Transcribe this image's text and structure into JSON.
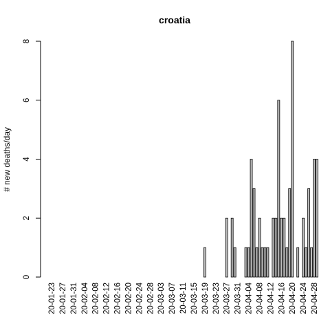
{
  "chart_data": {
    "type": "bar",
    "title": "croatia",
    "xlabel": "",
    "ylabel": "# new deaths/day",
    "ylim": [
      0,
      8
    ],
    "yticks": [
      0,
      2,
      4,
      6,
      8
    ],
    "x_tick_labels": [
      "20-01-23",
      "20-01-27",
      "20-01-31",
      "20-02-04",
      "20-02-08",
      "20-02-12",
      "20-02-16",
      "20-02-20",
      "20-02-24",
      "20-02-28",
      "20-03-03",
      "20-03-07",
      "20-03-11",
      "20-03-15",
      "20-03-19",
      "20-03-23",
      "20-03-27",
      "20-03-31",
      "20-04-04",
      "20-04-08",
      "20-04-12",
      "20-04-16",
      "20-04-20",
      "20-04-24",
      "20-04-28"
    ],
    "tick_every": 4,
    "bar_color": "#bebebe",
    "categories": [
      "20-01-23",
      "20-01-24",
      "20-01-25",
      "20-01-26",
      "20-01-27",
      "20-01-28",
      "20-01-29",
      "20-01-30",
      "20-01-31",
      "20-02-01",
      "20-02-02",
      "20-02-03",
      "20-02-04",
      "20-02-05",
      "20-02-06",
      "20-02-07",
      "20-02-08",
      "20-02-09",
      "20-02-10",
      "20-02-11",
      "20-02-12",
      "20-02-13",
      "20-02-14",
      "20-02-15",
      "20-02-16",
      "20-02-17",
      "20-02-18",
      "20-02-19",
      "20-02-20",
      "20-02-21",
      "20-02-22",
      "20-02-23",
      "20-02-24",
      "20-02-25",
      "20-02-26",
      "20-02-27",
      "20-02-28",
      "20-02-29",
      "20-03-01",
      "20-03-02",
      "20-03-03",
      "20-03-04",
      "20-03-05",
      "20-03-06",
      "20-03-07",
      "20-03-08",
      "20-03-09",
      "20-03-10",
      "20-03-11",
      "20-03-12",
      "20-03-13",
      "20-03-14",
      "20-03-15",
      "20-03-16",
      "20-03-17",
      "20-03-18",
      "20-03-19",
      "20-03-20",
      "20-03-21",
      "20-03-22",
      "20-03-23",
      "20-03-24",
      "20-03-25",
      "20-03-26",
      "20-03-27",
      "20-03-28",
      "20-03-29",
      "20-03-30",
      "20-03-31",
      "20-04-01",
      "20-04-02",
      "20-04-03",
      "20-04-04",
      "20-04-05",
      "20-04-06",
      "20-04-07",
      "20-04-08",
      "20-04-09",
      "20-04-10",
      "20-04-11",
      "20-04-12",
      "20-04-13",
      "20-04-14",
      "20-04-15",
      "20-04-16",
      "20-04-17",
      "20-04-18",
      "20-04-19",
      "20-04-20",
      "20-04-21",
      "20-04-22",
      "20-04-23",
      "20-04-24",
      "20-04-25",
      "20-04-26",
      "20-04-27",
      "20-04-28",
      "20-04-29"
    ],
    "values": [
      0,
      0,
      0,
      0,
      0,
      0,
      0,
      0,
      0,
      0,
      0,
      0,
      0,
      0,
      0,
      0,
      0,
      0,
      0,
      0,
      0,
      0,
      0,
      0,
      0,
      0,
      0,
      0,
      0,
      0,
      0,
      0,
      0,
      0,
      0,
      0,
      0,
      0,
      0,
      0,
      0,
      0,
      0,
      0,
      0,
      0,
      0,
      0,
      0,
      0,
      0,
      0,
      0,
      0,
      0,
      0,
      1,
      0,
      0,
      0,
      0,
      0,
      0,
      0,
      2,
      0,
      2,
      1,
      0,
      0,
      0,
      1,
      1,
      4,
      3,
      1,
      2,
      1,
      1,
      1,
      0,
      2,
      2,
      6,
      2,
      2,
      1,
      3,
      8,
      0,
      1,
      0,
      2,
      1,
      3,
      1,
      4,
      4
    ]
  }
}
